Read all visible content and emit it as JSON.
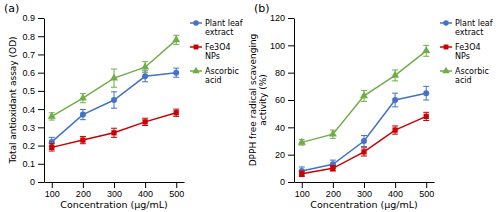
{
  "chart_data": [
    {
      "type": "line",
      "title": "(a)",
      "x_label": "Concentration (μg/mL)",
      "y_label": "Total antioxidant assay (OD)",
      "x": [
        100,
        200,
        300,
        400,
        500
      ],
      "xlim": [
        75,
        525
      ],
      "xticks": [
        100,
        200,
        300,
        400,
        500
      ],
      "ylim": [
        0,
        0.9
      ],
      "yticks": [
        0,
        0.1,
        0.2,
        0.3,
        0.4,
        0.5,
        0.6,
        0.7,
        0.8,
        0.9
      ],
      "grid": false,
      "legend": "upper right",
      "series": [
        {
          "name": "Plant leaf\nextract",
          "color": "#4472C4",
          "marker": "circle",
          "values": [
            0.22,
            0.37,
            0.45,
            0.58,
            0.6
          ],
          "errors": [
            0.025,
            0.028,
            0.045,
            0.03,
            0.025
          ]
        },
        {
          "name": "Fe3O4\nNPs",
          "color": "#CC0000",
          "marker": "square",
          "values": [
            0.19,
            0.23,
            0.27,
            0.33,
            0.38
          ],
          "errors": [
            0.02,
            0.02,
            0.025,
            0.02,
            0.02
          ]
        },
        {
          "name": "Ascorbic\nacid",
          "color": "#70AD47",
          "marker": "triangle",
          "values": [
            0.36,
            0.46,
            0.57,
            0.63,
            0.78
          ],
          "errors": [
            0.02,
            0.025,
            0.05,
            0.03,
            0.025
          ]
        }
      ]
    },
    {
      "type": "line",
      "title": "(b)",
      "x_label": "Concentration (μg/mL)",
      "y_label": "DPPH free radical scavenging\nactivity (%)",
      "x": [
        100,
        200,
        300,
        400,
        500
      ],
      "xlim": [
        75,
        525
      ],
      "xticks": [
        100,
        200,
        300,
        400,
        500
      ],
      "ylim": [
        0,
        120
      ],
      "yticks": [
        0,
        20,
        40,
        60,
        80,
        100,
        120
      ],
      "grid": false,
      "legend": "upper right",
      "series": [
        {
          "name": "Plant leaf\nextract",
          "color": "#4472C4",
          "marker": "circle",
          "values": [
            8,
            13,
            30,
            60,
            65
          ],
          "errors": [
            3,
            3,
            4,
            5,
            5
          ]
        },
        {
          "name": "Fe3O4\nNPs",
          "color": "#CC0000",
          "marker": "square",
          "values": [
            6,
            10,
            22,
            38,
            48
          ],
          "errors": [
            2,
            2,
            3,
            3,
            3
          ]
        },
        {
          "name": "Ascorbic\nacid",
          "color": "#70AD47",
          "marker": "triangle",
          "values": [
            29,
            35,
            63,
            78,
            96
          ],
          "errors": [
            2,
            3,
            4,
            4,
            4
          ]
        }
      ]
    }
  ]
}
